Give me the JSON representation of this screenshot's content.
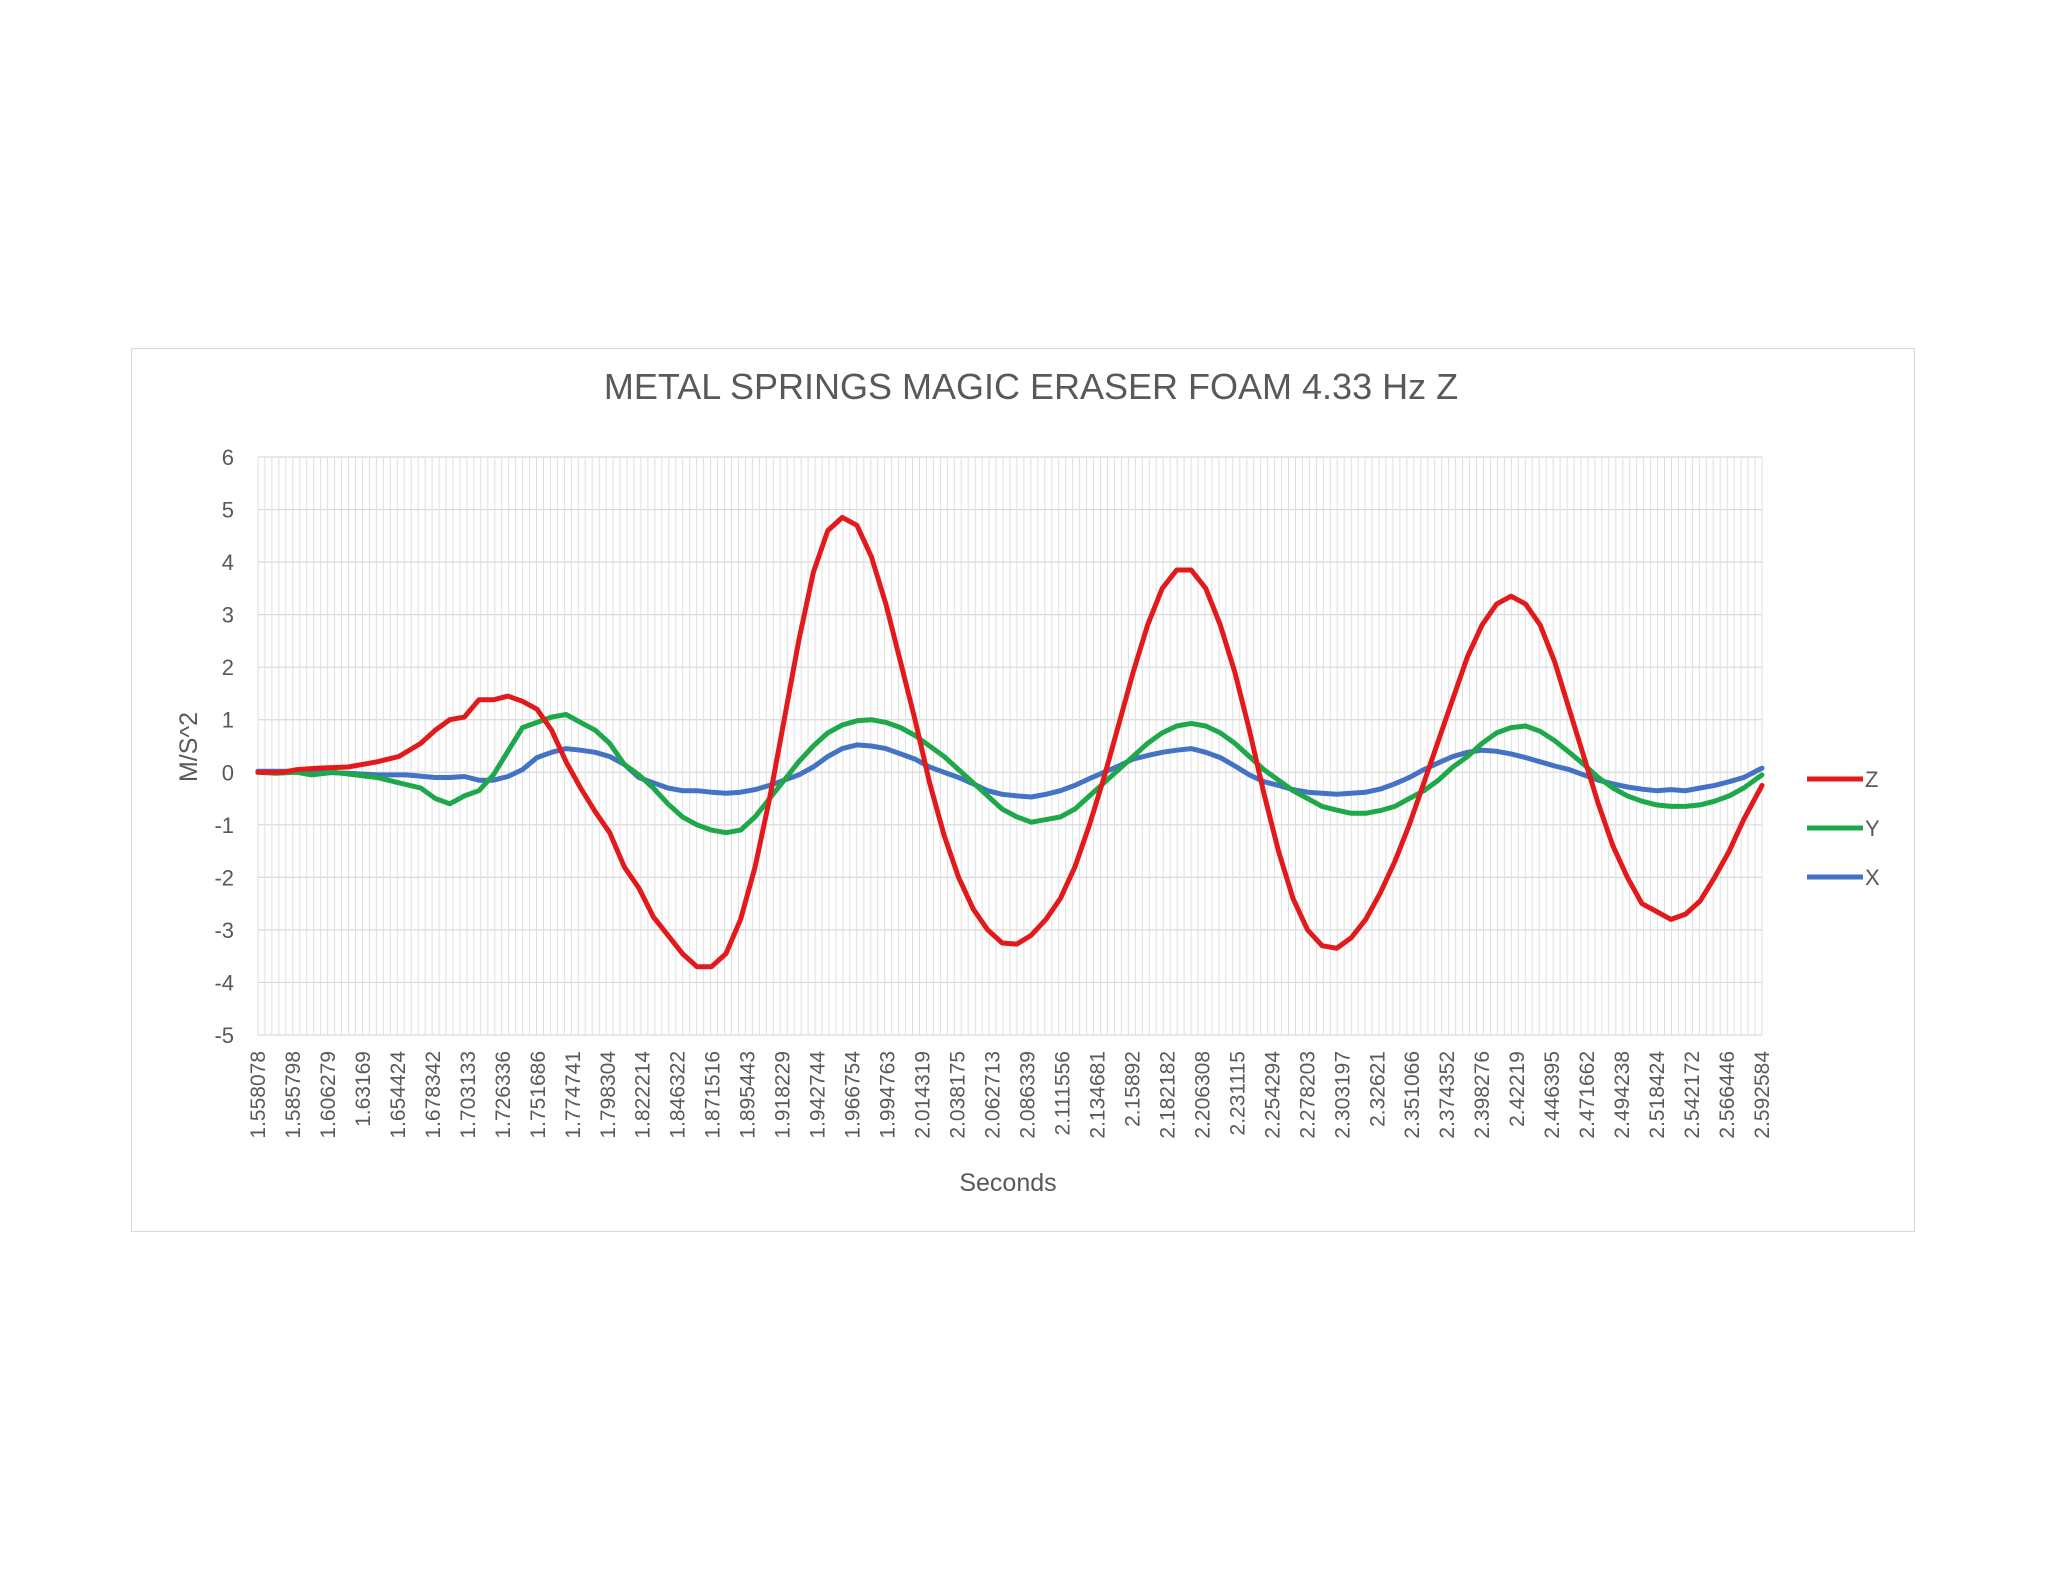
{
  "chart_data": {
    "type": "line",
    "title": "METAL SPRINGS MAGIC ERASER FOAM  4.33 Hz Z",
    "xlabel": "Seconds",
    "ylabel": "M/S^2",
    "ylim": [
      -5,
      6
    ],
    "yticks": [
      "6",
      "5",
      "4",
      "3",
      "2",
      "1",
      "0",
      "-1",
      "-2",
      "-3",
      "-4",
      "-5"
    ],
    "grid": true,
    "legend_position": "right",
    "x_tick_labels": [
      "1.558078",
      "1.585798",
      "1.606279",
      "1.63169",
      "1.654424",
      "1.678342",
      "1.703133",
      "1.726336",
      "1.751686",
      "1.774741",
      "1.798304",
      "1.822214",
      "1.846322",
      "1.871516",
      "1.895443",
      "1.918229",
      "1.942744",
      "1.966754",
      "1.994763",
      "2.014319",
      "2.038175",
      "2.062713",
      "2.086339",
      "2.111556",
      "2.134681",
      "2.15892",
      "2.182182",
      "2.206308",
      "2.231115",
      "2.254294",
      "2.278203",
      "2.303197",
      "2.32621",
      "2.351066",
      "2.374352",
      "2.398276",
      "2.42219",
      "2.446395",
      "2.471662",
      "2.494238",
      "2.518424",
      "2.542172",
      "2.566446",
      "2.592584"
    ],
    "series": [
      {
        "name": "Z",
        "color": "#e31a1c",
        "points": [
          [
            1.558,
            0.0
          ],
          [
            1.575,
            0.0
          ],
          [
            1.585,
            0.05
          ],
          [
            1.6,
            0.08
          ],
          [
            1.62,
            0.1
          ],
          [
            1.64,
            0.2
          ],
          [
            1.655,
            0.3
          ],
          [
            1.67,
            0.55
          ],
          [
            1.68,
            0.8
          ],
          [
            1.69,
            1.0
          ],
          [
            1.7,
            1.05
          ],
          [
            1.71,
            1.38
          ],
          [
            1.72,
            1.38
          ],
          [
            1.73,
            1.45
          ],
          [
            1.74,
            1.35
          ],
          [
            1.75,
            1.2
          ],
          [
            1.76,
            0.8
          ],
          [
            1.77,
            0.2
          ],
          [
            1.78,
            -0.3
          ],
          [
            1.79,
            -0.75
          ],
          [
            1.8,
            -1.15
          ],
          [
            1.81,
            -1.8
          ],
          [
            1.82,
            -2.2
          ],
          [
            1.83,
            -2.75
          ],
          [
            1.84,
            -3.1
          ],
          [
            1.85,
            -3.45
          ],
          [
            1.86,
            -3.7
          ],
          [
            1.87,
            -3.7
          ],
          [
            1.88,
            -3.45
          ],
          [
            1.89,
            -2.8
          ],
          [
            1.9,
            -1.8
          ],
          [
            1.91,
            -0.5
          ],
          [
            1.92,
            1.0
          ],
          [
            1.93,
            2.5
          ],
          [
            1.94,
            3.8
          ],
          [
            1.95,
            4.6
          ],
          [
            1.96,
            4.85
          ],
          [
            1.97,
            4.7
          ],
          [
            1.98,
            4.1
          ],
          [
            1.99,
            3.2
          ],
          [
            2.0,
            2.1
          ],
          [
            2.01,
            1.0
          ],
          [
            2.02,
            -0.2
          ],
          [
            2.03,
            -1.2
          ],
          [
            2.04,
            -2.0
          ],
          [
            2.05,
            -2.6
          ],
          [
            2.06,
            -3.0
          ],
          [
            2.07,
            -3.25
          ],
          [
            2.08,
            -3.27
          ],
          [
            2.09,
            -3.1
          ],
          [
            2.1,
            -2.8
          ],
          [
            2.11,
            -2.4
          ],
          [
            2.12,
            -1.8
          ],
          [
            2.13,
            -1.0
          ],
          [
            2.14,
            -0.1
          ],
          [
            2.15,
            0.9
          ],
          [
            2.16,
            1.9
          ],
          [
            2.17,
            2.8
          ],
          [
            2.18,
            3.5
          ],
          [
            2.19,
            3.85
          ],
          [
            2.2,
            3.85
          ],
          [
            2.21,
            3.5
          ],
          [
            2.22,
            2.8
          ],
          [
            2.23,
            1.9
          ],
          [
            2.24,
            0.8
          ],
          [
            2.25,
            -0.4
          ],
          [
            2.26,
            -1.5
          ],
          [
            2.27,
            -2.4
          ],
          [
            2.28,
            -3.0
          ],
          [
            2.29,
            -3.3
          ],
          [
            2.3,
            -3.35
          ],
          [
            2.31,
            -3.15
          ],
          [
            2.32,
            -2.8
          ],
          [
            2.33,
            -2.3
          ],
          [
            2.34,
            -1.7
          ],
          [
            2.35,
            -1.0
          ],
          [
            2.36,
            -0.2
          ],
          [
            2.37,
            0.6
          ],
          [
            2.38,
            1.4
          ],
          [
            2.39,
            2.2
          ],
          [
            2.4,
            2.8
          ],
          [
            2.41,
            3.2
          ],
          [
            2.42,
            3.35
          ],
          [
            2.43,
            3.2
          ],
          [
            2.44,
            2.8
          ],
          [
            2.45,
            2.1
          ],
          [
            2.46,
            1.2
          ],
          [
            2.47,
            0.3
          ],
          [
            2.48,
            -0.6
          ],
          [
            2.49,
            -1.4
          ],
          [
            2.5,
            -2.0
          ],
          [
            2.51,
            -2.5
          ],
          [
            2.52,
            -2.65
          ],
          [
            2.53,
            -2.8
          ],
          [
            2.54,
            -2.7
          ],
          [
            2.55,
            -2.45
          ],
          [
            2.56,
            -2.0
          ],
          [
            2.57,
            -1.5
          ],
          [
            2.58,
            -0.9
          ],
          [
            2.5926,
            -0.25
          ]
        ]
      },
      {
        "name": "Y",
        "color": "#1fa84a",
        "points": [
          [
            1.558,
            0.0
          ],
          [
            1.57,
            -0.02
          ],
          [
            1.585,
            0.0
          ],
          [
            1.595,
            -0.05
          ],
          [
            1.61,
            0.0
          ],
          [
            1.625,
            -0.05
          ],
          [
            1.64,
            -0.1
          ],
          [
            1.655,
            -0.2
          ],
          [
            1.67,
            -0.3
          ],
          [
            1.68,
            -0.5
          ],
          [
            1.69,
            -0.6
          ],
          [
            1.7,
            -0.45
          ],
          [
            1.71,
            -0.35
          ],
          [
            1.72,
            -0.05
          ],
          [
            1.73,
            0.4
          ],
          [
            1.74,
            0.85
          ],
          [
            1.75,
            0.95
          ],
          [
            1.76,
            1.05
          ],
          [
            1.77,
            1.1
          ],
          [
            1.78,
            0.95
          ],
          [
            1.79,
            0.8
          ],
          [
            1.8,
            0.55
          ],
          [
            1.81,
            0.15
          ],
          [
            1.82,
            -0.05
          ],
          [
            1.83,
            -0.3
          ],
          [
            1.84,
            -0.6
          ],
          [
            1.85,
            -0.85
          ],
          [
            1.86,
            -1.0
          ],
          [
            1.87,
            -1.1
          ],
          [
            1.88,
            -1.15
          ],
          [
            1.89,
            -1.1
          ],
          [
            1.9,
            -0.85
          ],
          [
            1.91,
            -0.5
          ],
          [
            1.92,
            -0.15
          ],
          [
            1.93,
            0.2
          ],
          [
            1.94,
            0.5
          ],
          [
            1.95,
            0.75
          ],
          [
            1.96,
            0.9
          ],
          [
            1.97,
            0.98
          ],
          [
            1.98,
            1.0
          ],
          [
            1.99,
            0.95
          ],
          [
            2.0,
            0.85
          ],
          [
            2.01,
            0.7
          ],
          [
            2.02,
            0.5
          ],
          [
            2.03,
            0.3
          ],
          [
            2.04,
            0.05
          ],
          [
            2.05,
            -0.2
          ],
          [
            2.06,
            -0.45
          ],
          [
            2.07,
            -0.7
          ],
          [
            2.08,
            -0.85
          ],
          [
            2.09,
            -0.95
          ],
          [
            2.1,
            -0.9
          ],
          [
            2.11,
            -0.85
          ],
          [
            2.12,
            -0.7
          ],
          [
            2.13,
            -0.45
          ],
          [
            2.14,
            -0.2
          ],
          [
            2.15,
            0.05
          ],
          [
            2.16,
            0.3
          ],
          [
            2.17,
            0.55
          ],
          [
            2.18,
            0.75
          ],
          [
            2.19,
            0.88
          ],
          [
            2.2,
            0.93
          ],
          [
            2.21,
            0.88
          ],
          [
            2.22,
            0.75
          ],
          [
            2.23,
            0.55
          ],
          [
            2.24,
            0.3
          ],
          [
            2.25,
            0.05
          ],
          [
            2.26,
            -0.15
          ],
          [
            2.27,
            -0.35
          ],
          [
            2.28,
            -0.5
          ],
          [
            2.29,
            -0.65
          ],
          [
            2.3,
            -0.72
          ],
          [
            2.31,
            -0.78
          ],
          [
            2.32,
            -0.78
          ],
          [
            2.33,
            -0.73
          ],
          [
            2.34,
            -0.65
          ],
          [
            2.35,
            -0.5
          ],
          [
            2.36,
            -0.35
          ],
          [
            2.37,
            -0.15
          ],
          [
            2.38,
            0.1
          ],
          [
            2.39,
            0.3
          ],
          [
            2.4,
            0.55
          ],
          [
            2.41,
            0.75
          ],
          [
            2.42,
            0.85
          ],
          [
            2.43,
            0.88
          ],
          [
            2.44,
            0.78
          ],
          [
            2.45,
            0.6
          ],
          [
            2.46,
            0.38
          ],
          [
            2.47,
            0.15
          ],
          [
            2.48,
            -0.1
          ],
          [
            2.49,
            -0.3
          ],
          [
            2.5,
            -0.45
          ],
          [
            2.51,
            -0.55
          ],
          [
            2.52,
            -0.62
          ],
          [
            2.53,
            -0.65
          ],
          [
            2.54,
            -0.65
          ],
          [
            2.55,
            -0.62
          ],
          [
            2.56,
            -0.55
          ],
          [
            2.57,
            -0.45
          ],
          [
            2.58,
            -0.3
          ],
          [
            2.5926,
            -0.05
          ]
        ]
      },
      {
        "name": "X",
        "color": "#4472c4",
        "points": [
          [
            1.558,
            0.02
          ],
          [
            1.58,
            0.02
          ],
          [
            1.6,
            0.0
          ],
          [
            1.62,
            -0.02
          ],
          [
            1.64,
            -0.05
          ],
          [
            1.66,
            -0.05
          ],
          [
            1.68,
            -0.1
          ],
          [
            1.69,
            -0.1
          ],
          [
            1.7,
            -0.08
          ],
          [
            1.71,
            -0.15
          ],
          [
            1.72,
            -0.15
          ],
          [
            1.73,
            -0.08
          ],
          [
            1.74,
            0.05
          ],
          [
            1.75,
            0.28
          ],
          [
            1.76,
            0.38
          ],
          [
            1.77,
            0.45
          ],
          [
            1.78,
            0.42
          ],
          [
            1.79,
            0.38
          ],
          [
            1.8,
            0.3
          ],
          [
            1.81,
            0.15
          ],
          [
            1.82,
            -0.1
          ],
          [
            1.83,
            -0.2
          ],
          [
            1.84,
            -0.3
          ],
          [
            1.85,
            -0.35
          ],
          [
            1.86,
            -0.35
          ],
          [
            1.87,
            -0.38
          ],
          [
            1.88,
            -0.4
          ],
          [
            1.89,
            -0.38
          ],
          [
            1.9,
            -0.33
          ],
          [
            1.91,
            -0.25
          ],
          [
            1.92,
            -0.15
          ],
          [
            1.93,
            -0.05
          ],
          [
            1.94,
            0.1
          ],
          [
            1.95,
            0.3
          ],
          [
            1.96,
            0.45
          ],
          [
            1.97,
            0.52
          ],
          [
            1.98,
            0.5
          ],
          [
            1.99,
            0.45
          ],
          [
            2.0,
            0.35
          ],
          [
            2.01,
            0.25
          ],
          [
            2.02,
            0.1
          ],
          [
            2.03,
            0.0
          ],
          [
            2.04,
            -0.1
          ],
          [
            2.05,
            -0.22
          ],
          [
            2.06,
            -0.35
          ],
          [
            2.07,
            -0.42
          ],
          [
            2.08,
            -0.45
          ],
          [
            2.09,
            -0.47
          ],
          [
            2.1,
            -0.42
          ],
          [
            2.11,
            -0.35
          ],
          [
            2.12,
            -0.25
          ],
          [
            2.13,
            -0.12
          ],
          [
            2.14,
            0.0
          ],
          [
            2.15,
            0.12
          ],
          [
            2.16,
            0.25
          ],
          [
            2.17,
            0.32
          ],
          [
            2.18,
            0.38
          ],
          [
            2.19,
            0.42
          ],
          [
            2.2,
            0.45
          ],
          [
            2.21,
            0.38
          ],
          [
            2.22,
            0.28
          ],
          [
            2.23,
            0.12
          ],
          [
            2.24,
            -0.05
          ],
          [
            2.25,
            -0.18
          ],
          [
            2.26,
            -0.25
          ],
          [
            2.27,
            -0.33
          ],
          [
            2.28,
            -0.38
          ],
          [
            2.29,
            -0.4
          ],
          [
            2.3,
            -0.42
          ],
          [
            2.31,
            -0.4
          ],
          [
            2.32,
            -0.38
          ],
          [
            2.33,
            -0.32
          ],
          [
            2.34,
            -0.22
          ],
          [
            2.35,
            -0.1
          ],
          [
            2.36,
            0.05
          ],
          [
            2.37,
            0.18
          ],
          [
            2.38,
            0.3
          ],
          [
            2.39,
            0.38
          ],
          [
            2.4,
            0.42
          ],
          [
            2.41,
            0.4
          ],
          [
            2.42,
            0.35
          ],
          [
            2.43,
            0.28
          ],
          [
            2.44,
            0.2
          ],
          [
            2.45,
            0.12
          ],
          [
            2.46,
            0.05
          ],
          [
            2.47,
            -0.05
          ],
          [
            2.48,
            -0.15
          ],
          [
            2.49,
            -0.22
          ],
          [
            2.5,
            -0.28
          ],
          [
            2.51,
            -0.32
          ],
          [
            2.52,
            -0.35
          ],
          [
            2.53,
            -0.33
          ],
          [
            2.54,
            -0.35
          ],
          [
            2.55,
            -0.3
          ],
          [
            2.56,
            -0.25
          ],
          [
            2.57,
            -0.18
          ],
          [
            2.58,
            -0.1
          ],
          [
            2.5926,
            0.08
          ]
        ]
      }
    ]
  }
}
